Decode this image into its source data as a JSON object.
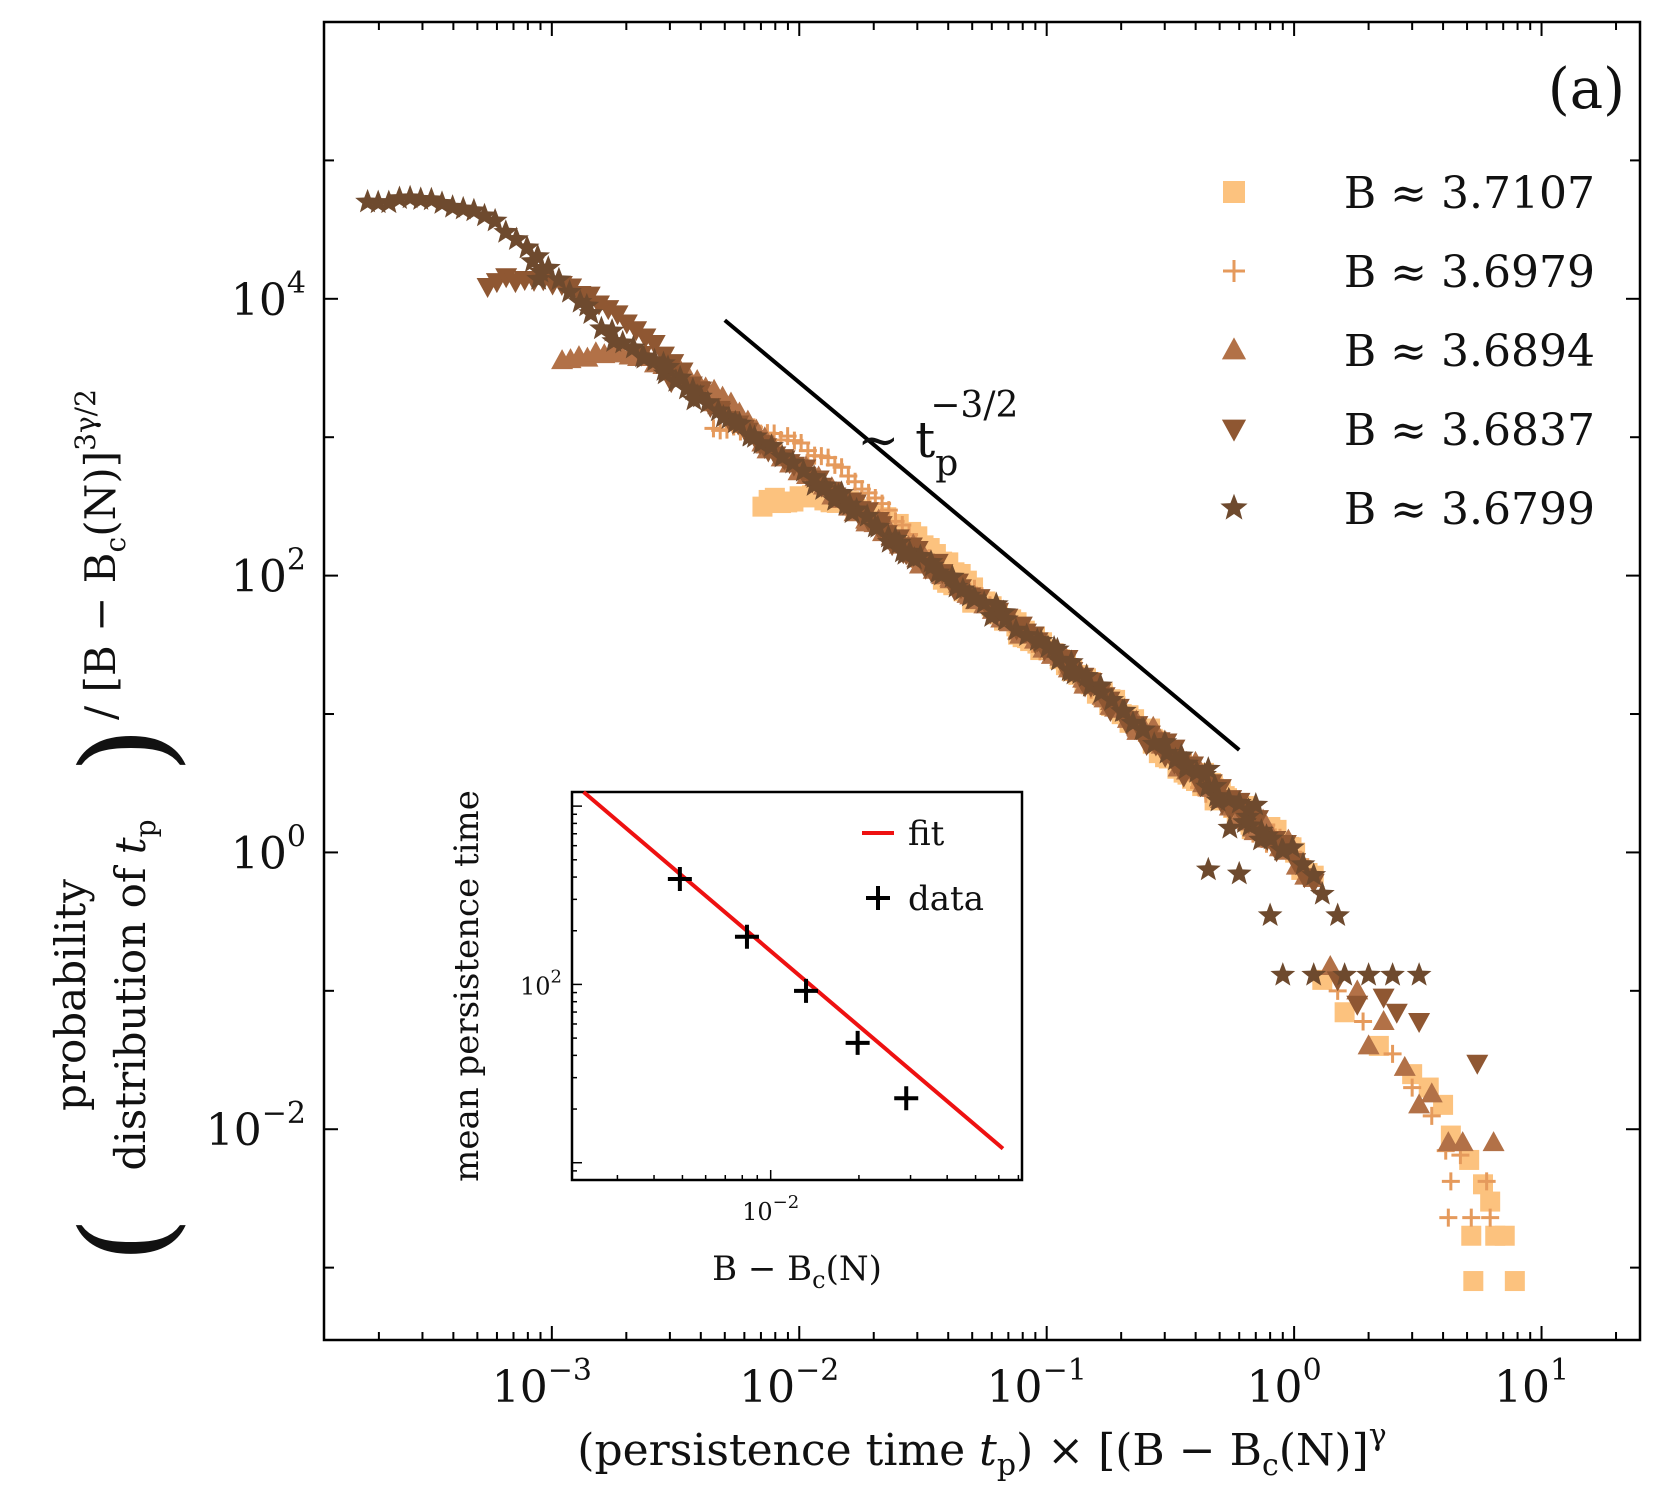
{
  "chart_data": {
    "type": "scatter",
    "panel_label": "(a)",
    "title": "",
    "x_scale": "log",
    "y_scale": "log",
    "xlim": [
      0.00012,
      25
    ],
    "ylim": [
      0.0003,
      1000000
    ],
    "xlabel": {
      "prefix": "(persistence time ",
      "var": "t",
      "sub": "p",
      "suffix": ") × [(B − B",
      "sub2": "c",
      "tail": "(N)]",
      "sup": "γ"
    },
    "ylabel": {
      "open": "(",
      "line1": "probability",
      "line2": "distribution  of ",
      "var": "t",
      "sub": "p",
      "close": ")",
      "tail": " / [B − B",
      "sub2": "c",
      "tail2": "(N)]",
      "sup": "3γ/2"
    },
    "x_ticks": [
      {
        "value": 0.001,
        "base": "10",
        "exp": "−3"
      },
      {
        "value": 0.01,
        "base": "10",
        "exp": "−2"
      },
      {
        "value": 0.1,
        "base": "10",
        "exp": "−1"
      },
      {
        "value": 1,
        "base": "10",
        "exp": "0"
      },
      {
        "value": 10,
        "base": "10",
        "exp": "1"
      }
    ],
    "y_ticks": [
      {
        "value": 0.01,
        "base": "10",
        "exp": "−2"
      },
      {
        "value": 1,
        "base": "10",
        "exp": "0"
      },
      {
        "value": 100,
        "base": "10",
        "exp": "2"
      },
      {
        "value": 10000,
        "base": "10",
        "exp": "4"
      }
    ],
    "reference_line": {
      "x": [
        0.005,
        0.6
      ],
      "y": [
        7000,
        5.5
      ],
      "label_prefix": "∼ t",
      "label_sub": "p",
      "label_sup": "−3/2",
      "label_anchor": [
        0.03,
        1000
      ]
    },
    "series": [
      {
        "name": "B ≈ 3.7107",
        "marker": "square",
        "color": "#fcc27e",
        "x_min": 0.0071,
        "x_max": 7.8,
        "y_at_min": 330,
        "tail": [
          [
            5.3,
            0.0008
          ],
          [
            7.8,
            0.0008
          ],
          [
            5.2,
            0.0017
          ],
          [
            6.5,
            0.0017
          ],
          [
            7.1,
            0.0017
          ],
          [
            6.2,
            0.003
          ],
          [
            5.8,
            0.004
          ],
          [
            5.1,
            0.006
          ],
          [
            4.3,
            0.009
          ],
          [
            4.0,
            0.015
          ],
          [
            3.5,
            0.02
          ],
          [
            3.0,
            0.025
          ],
          [
            2.2,
            0.04
          ],
          [
            1.6,
            0.07
          ],
          [
            1.3,
            0.12
          ]
        ]
      },
      {
        "name": "B ≈ 3.6979",
        "marker": "plus",
        "color": "#e59a5c",
        "x_min": 0.0045,
        "x_max": 6.2,
        "y_at_min": 1150,
        "tail": [
          [
            4.2,
            0.0023
          ],
          [
            5.2,
            0.0023
          ],
          [
            6.2,
            0.0023
          ],
          [
            4.3,
            0.0042
          ],
          [
            6.0,
            0.0042
          ],
          [
            4.7,
            0.0065
          ],
          [
            3.6,
            0.0125
          ],
          [
            4.1,
            0.007
          ],
          [
            3.0,
            0.02
          ],
          [
            2.5,
            0.035
          ],
          [
            1.9,
            0.06
          ],
          [
            1.5,
            0.1
          ]
        ]
      },
      {
        "name": "B ≈ 3.6894",
        "marker": "triangle-up",
        "color": "#b27147",
        "x_min": 0.0011,
        "x_max": 6.4,
        "y_at_min": 3500,
        "tail": [
          [
            6.4,
            0.008
          ],
          [
            4.2,
            0.008
          ],
          [
            4.8,
            0.008
          ],
          [
            3.2,
            0.015
          ],
          [
            3.6,
            0.018
          ],
          [
            2.8,
            0.028
          ],
          [
            2.0,
            0.04
          ],
          [
            2.3,
            0.06
          ],
          [
            1.8,
            0.1
          ],
          [
            1.4,
            0.15
          ]
        ]
      },
      {
        "name": "B ≈ 3.6837",
        "marker": "triangle-down",
        "color": "#8f5732",
        "x_min": 0.00055,
        "x_max": 5.5,
        "y_at_min": 13000,
        "tail": [
          [
            5.5,
            0.03
          ],
          [
            3.2,
            0.06
          ],
          [
            2.3,
            0.09
          ],
          [
            2.6,
            0.07
          ],
          [
            1.5,
            0.12
          ],
          [
            1.8,
            0.08
          ]
        ]
      },
      {
        "name": "B ≈ 3.6799",
        "marker": "star",
        "color": "#6e4a2e",
        "x_min": 0.00018,
        "x_max": 3.2,
        "y_at_min": 48000,
        "tail": [
          [
            0.45,
            0.75
          ],
          [
            0.6,
            0.7
          ],
          [
            0.8,
            0.35
          ],
          [
            1.3,
            0.5
          ],
          [
            1.5,
            0.35
          ],
          [
            0.9,
            0.13
          ],
          [
            1.2,
            0.13
          ],
          [
            1.6,
            0.13
          ],
          [
            2.0,
            0.13
          ],
          [
            2.5,
            0.13
          ],
          [
            3.2,
            0.13
          ],
          [
            0.55,
            1.5
          ],
          [
            0.7,
            2.2
          ],
          [
            0.45,
            4.0
          ],
          [
            0.35,
            5.0
          ]
        ]
      }
    ],
    "inset": {
      "x_scale": "log",
      "y_scale": "log",
      "xlim": [
        0.0021,
        0.072
      ],
      "ylim": [
        8,
        1200
      ],
      "ylabel": "mean persistence time",
      "xlabel": {
        "prefix": "B − B",
        "sub": "c",
        "suffix": "(N)"
      },
      "x_ticks": [
        {
          "value": 0.01,
          "base": "10",
          "exp": "−2"
        }
      ],
      "y_ticks": [
        {
          "value": 100,
          "base": "10",
          "exp": "2"
        }
      ],
      "fit": {
        "label": "fit",
        "color": "#ee1111",
        "x": [
          0.0023,
          0.062
        ],
        "y": [
          1200,
          12
        ]
      },
      "data": {
        "label": "data",
        "color": "#000000",
        "points": [
          [
            0.0049,
            390
          ],
          [
            0.0083,
            185
          ],
          [
            0.0132,
            92
          ],
          [
            0.0198,
            47
          ],
          [
            0.029,
            23
          ]
        ]
      }
    }
  }
}
